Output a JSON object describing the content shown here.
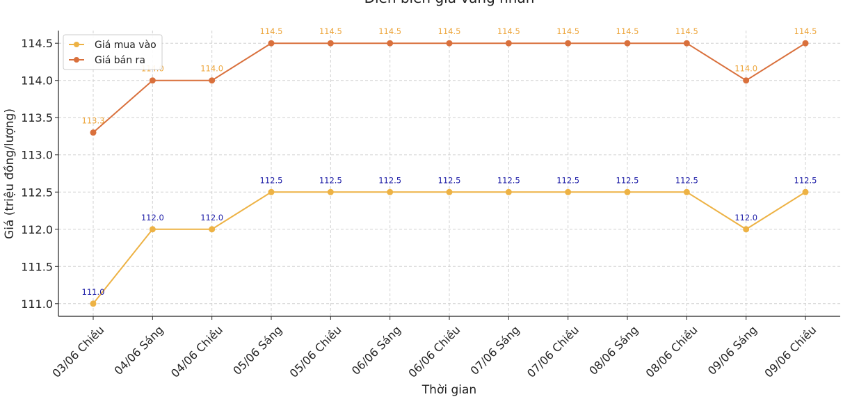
{
  "chart_data": {
    "type": "line",
    "title": "Diễn biến giá vàng nhẫn",
    "xlabel": "Thời gian",
    "ylabel": "Giá (triệu đồng/lượng)",
    "categories": [
      "03/06 Chiều",
      "04/06 Sáng",
      "04/06 Chiều",
      "05/06 Sáng",
      "05/06 Chiều",
      "06/06 Sáng",
      "06/06 Chiều",
      "07/06 Sáng",
      "07/06 Chiều",
      "08/06 Sáng",
      "08/06 Chiều",
      "09/06 Sáng",
      "09/06 Chiều"
    ],
    "yticks": [
      "111.0",
      "111.5",
      "112.0",
      "112.5",
      "113.0",
      "113.5",
      "114.0",
      "114.5"
    ],
    "ylim": [
      110.83,
      114.67
    ],
    "grid": true,
    "legend_position": "top-left",
    "series": [
      {
        "name": "Giá mua vào",
        "color": "#EDB244",
        "label_color": "#1a1aa6",
        "values": [
          111.0,
          112.0,
          112.0,
          112.5,
          112.5,
          112.5,
          112.5,
          112.5,
          112.5,
          112.5,
          112.5,
          112.0,
          112.5
        ],
        "labels": [
          "111.0",
          "112.0",
          "112.0",
          "112.5",
          "112.5",
          "112.5",
          "112.5",
          "112.5",
          "112.5",
          "112.5",
          "112.5",
          "112.0",
          "112.5"
        ]
      },
      {
        "name": "Giá bán ra",
        "color": "#D9703C",
        "label_color": "#EDA53A",
        "values": [
          113.3,
          114.0,
          114.0,
          114.5,
          114.5,
          114.5,
          114.5,
          114.5,
          114.5,
          114.5,
          114.5,
          114.0,
          114.5
        ],
        "labels": [
          "113.3",
          "114.0",
          "114.0",
          "114.5",
          "114.5",
          "114.5",
          "114.5",
          "114.5",
          "114.5",
          "114.5",
          "114.5",
          "114.0",
          "114.5"
        ]
      }
    ]
  }
}
